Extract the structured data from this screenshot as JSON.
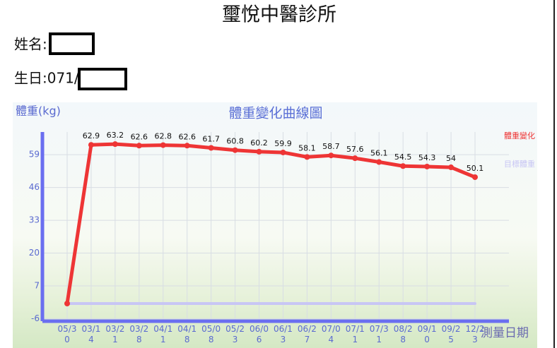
{
  "header": {
    "title": "璽悅中醫診所",
    "name_label": "姓名:",
    "birth_label": "生日:071/"
  },
  "chart_data": {
    "type": "line",
    "title": "體重變化曲線圖",
    "y_label": "體重(kg)",
    "x_label": "測量日期",
    "categories": [
      "05/30",
      "03/14",
      "03/21",
      "03/28",
      "04/11",
      "04/18",
      "05/08",
      "05/23",
      "06/06",
      "06/13",
      "06/27",
      "07/04",
      "07/11",
      "07/31",
      "08/28",
      "09/10",
      "09/25",
      "12/23"
    ],
    "series": [
      {
        "name": "體重變化",
        "color": "#ee3535",
        "values": [
          0,
          62.9,
          63.2,
          62.6,
          62.8,
          62.6,
          61.7,
          60.8,
          60.2,
          59.9,
          58.1,
          58.7,
          57.6,
          56.1,
          54.5,
          54.3,
          54,
          50.1
        ],
        "value_labels": [
          null,
          "62.9",
          "63.2",
          "62.6",
          "62.8",
          "62.6",
          "61.7",
          "60.8",
          "60.2",
          "59.9",
          "58.1",
          "58.7",
          "57.6",
          "56.1",
          "54.5",
          "54.3",
          "54",
          "50.1"
        ]
      },
      {
        "name": "目標體重",
        "color": "#c8c6f4",
        "values": [
          0,
          0,
          0,
          0,
          0,
          0,
          0,
          0,
          0,
          0,
          0,
          0,
          0,
          0,
          0,
          0,
          0,
          0
        ]
      }
    ],
    "ylim": [
      -7,
      68
    ],
    "yticks": [
      -6,
      7,
      20,
      33,
      46,
      59
    ],
    "grid": true
  }
}
